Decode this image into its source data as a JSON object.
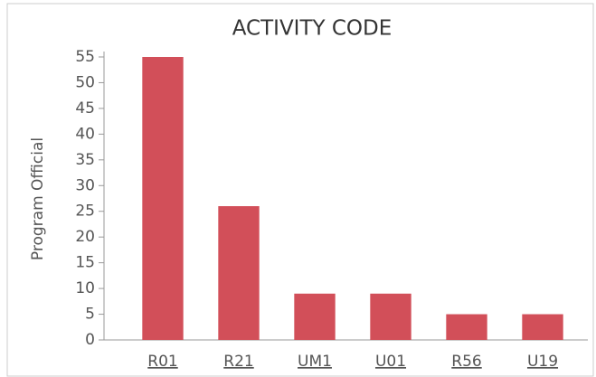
{
  "chart_data": {
    "type": "bar",
    "title": "ACTIVITY CODE",
    "y_label": "Program Official",
    "categories": [
      "R01",
      "R21",
      "UM1",
      "U01",
      "R56",
      "U19"
    ],
    "values": [
      55,
      26,
      9,
      9,
      5,
      5
    ],
    "color": "#d24f59",
    "ylim": [
      0,
      55
    ],
    "yticks": [
      0,
      5,
      10,
      15,
      20,
      25,
      30,
      35,
      40,
      45,
      50,
      55
    ],
    "grid": false
  }
}
